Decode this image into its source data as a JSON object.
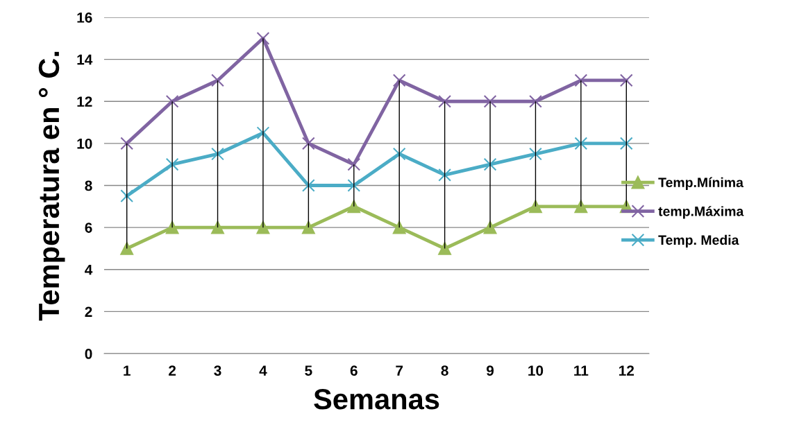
{
  "chart_data": {
    "type": "line",
    "xlabel": "Semanas",
    "ylabel": "Temperatura en ° C.",
    "categories": [
      "1",
      "2",
      "3",
      "4",
      "5",
      "6",
      "7",
      "8",
      "9",
      "10",
      "11",
      "12"
    ],
    "series": [
      {
        "name": "Temp.Mínima",
        "color": "#9bbb59",
        "marker": "triangle",
        "values": [
          5,
          6,
          6,
          6,
          6,
          7,
          6,
          5,
          6,
          7,
          7,
          7
        ]
      },
      {
        "name": "temp.Máxima",
        "color": "#8064a2",
        "marker": "cross",
        "values": [
          10,
          12,
          13,
          15,
          10,
          9,
          13,
          12,
          12,
          12,
          13,
          13
        ],
        "errors": [
          [
            5,
            10
          ],
          [
            6,
            12
          ],
          [
            6,
            13
          ],
          [
            6,
            15
          ],
          [
            6,
            10
          ],
          [
            7,
            9
          ],
          [
            6,
            13
          ],
          [
            5,
            12
          ],
          [
            6,
            12
          ],
          [
            7,
            12
          ],
          [
            7,
            13
          ],
          [
            7,
            13
          ]
        ]
      },
      {
        "name": "Temp. Media",
        "color": "#4bacc6",
        "marker": "cross",
        "values": [
          7.5,
          9,
          9.5,
          10.5,
          8,
          8,
          9.5,
          8.5,
          9,
          9.5,
          10,
          10
        ]
      }
    ],
    "ylim": [
      0,
      16
    ],
    "yticks": [
      0,
      2,
      4,
      6,
      8,
      10,
      12,
      14,
      16
    ],
    "grid": "y",
    "legend": "right",
    "line_style": "solid"
  }
}
